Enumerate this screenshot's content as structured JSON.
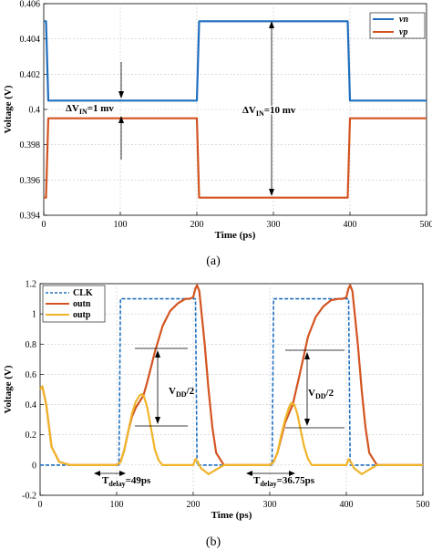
{
  "chart_data": [
    {
      "type": "line",
      "panel": "a",
      "caption": "(a)",
      "xlabel": "Time (ps)",
      "ylabel": "Voltage (V)",
      "xlim": [
        0,
        500
      ],
      "ylim": [
        0.394,
        0.406
      ],
      "xticks": [
        0,
        100,
        200,
        300,
        400,
        500
      ],
      "yticks": [
        0.394,
        0.396,
        0.398,
        0.4,
        0.402,
        0.404,
        0.406
      ],
      "ytick_labels": [
        "0.394",
        "0.396",
        "0.398",
        "0.4",
        "0.402",
        "0.404",
        "0.406"
      ],
      "grid": true,
      "legend_position": "top-right",
      "series": [
        {
          "name": "vn",
          "color": "#1f6fbf",
          "x": [
            0,
            3,
            6,
            200,
            203,
            397,
            400,
            500
          ],
          "y": [
            0.405,
            0.405,
            0.4005,
            0.4005,
            0.405,
            0.405,
            0.4005,
            0.4005
          ]
        },
        {
          "name": "vp",
          "color": "#d35420",
          "x": [
            0,
            3,
            6,
            200,
            203,
            397,
            400,
            500
          ],
          "y": [
            0.395,
            0.395,
            0.3995,
            0.3995,
            0.395,
            0.395,
            0.3995,
            0.3995
          ]
        }
      ],
      "annotations": [
        {
          "text": "ΔV",
          "sub": "IN",
          "rest": "=1 mv"
        },
        {
          "text": "ΔV",
          "sub": "IN",
          "rest": "=10 mv"
        }
      ]
    },
    {
      "type": "line",
      "panel": "b",
      "caption": "(b)",
      "xlabel": "Time (ps)",
      "ylabel": "Voltage (V)",
      "xlim": [
        0,
        500
      ],
      "ylim": [
        -0.2,
        1.2
      ],
      "xticks": [
        0,
        100,
        200,
        300,
        400,
        500
      ],
      "yticks": [
        -0.2,
        0,
        0.2,
        0.4,
        0.6,
        0.8,
        1,
        1.2
      ],
      "ytick_labels": [
        "-0.2",
        "0",
        "0.2",
        "0.4",
        "0.6",
        "0.8",
        "1",
        "1.2"
      ],
      "grid": true,
      "legend_position": "top-left",
      "series": [
        {
          "name": "CLK",
          "color": "#1f6fbf",
          "dash": true,
          "x": [
            0,
            1,
            3,
            103,
            105,
            203,
            205,
            303,
            305,
            403,
            405,
            500
          ],
          "y": [
            0,
            0,
            0,
            0,
            1.1,
            1.1,
            0,
            0,
            1.1,
            1.1,
            0,
            0
          ]
        },
        {
          "name": "outn",
          "color": "#d35420",
          "x": [
            0,
            3,
            8,
            15,
            25,
            40,
            60,
            100,
            105,
            110,
            115,
            120,
            125,
            130,
            135,
            140,
            150,
            160,
            170,
            180,
            190,
            195,
            200,
            203,
            205,
            208,
            210,
            215,
            220,
            225,
            230,
            240,
            250,
            260,
            280,
            300,
            305,
            310,
            315,
            320,
            325,
            330,
            340,
            350,
            360,
            370,
            380,
            390,
            395,
            400,
            403,
            405,
            408,
            410,
            415,
            420,
            425,
            430,
            440,
            450,
            460,
            480,
            500
          ],
          "y": [
            0.5,
            0.52,
            0.4,
            0.12,
            0.02,
            0,
            0,
            0,
            0.02,
            0.1,
            0.22,
            0.32,
            0.38,
            0.42,
            0.46,
            0.55,
            0.75,
            0.92,
            1.02,
            1.07,
            1.1,
            1.1,
            1.11,
            1.17,
            1.19,
            1.15,
            1.05,
            0.8,
            0.5,
            0.25,
            0.08,
            0,
            0,
            0,
            0,
            0,
            0.02,
            0.08,
            0.18,
            0.28,
            0.34,
            0.4,
            0.62,
            0.85,
            0.98,
            1.05,
            1.09,
            1.1,
            1.1,
            1.11,
            1.17,
            1.19,
            1.15,
            1.05,
            0.8,
            0.5,
            0.25,
            0.08,
            0,
            0,
            0,
            0,
            0
          ]
        },
        {
          "name": "outp",
          "color": "#f0b42a",
          "x": [
            0,
            3,
            8,
            15,
            25,
            40,
            60,
            100,
            105,
            110,
            115,
            120,
            125,
            130,
            133,
            136,
            140,
            145,
            150,
            155,
            160,
            170,
            180,
            190,
            200,
            203,
            206,
            210,
            220,
            230,
            240,
            250,
            260,
            280,
            300,
            305,
            310,
            315,
            320,
            325,
            328,
            332,
            336,
            340,
            345,
            350,
            355,
            360,
            370,
            380,
            390,
            400,
            403,
            406,
            410,
            420,
            430,
            440,
            450,
            460,
            480,
            500
          ],
          "y": [
            0.5,
            0.52,
            0.4,
            0.12,
            0.02,
            0,
            0,
            0,
            0.02,
            0.1,
            0.22,
            0.34,
            0.42,
            0.46,
            0.47,
            0.45,
            0.38,
            0.24,
            0.1,
            0.03,
            0,
            0,
            0,
            0,
            0,
            0.04,
            0.02,
            -0.02,
            -0.06,
            -0.03,
            0,
            0,
            0,
            0,
            0,
            0.02,
            0.08,
            0.2,
            0.3,
            0.38,
            0.41,
            0.4,
            0.34,
            0.24,
            0.12,
            0.04,
            0,
            0,
            0,
            0,
            0,
            0,
            0.04,
            0.02,
            -0.02,
            -0.06,
            -0.03,
            0,
            0,
            0,
            0,
            0
          ]
        }
      ],
      "annotations": [
        {
          "text": "V",
          "sub": "DD",
          "rest": "/2"
        },
        {
          "text": "V",
          "sub": "DD",
          "rest": "/2"
        },
        {
          "text": "T",
          "sub": "delay",
          "rest": "=49ps"
        },
        {
          "text": "T",
          "sub": "delay",
          "rest": "=36.75ps"
        }
      ]
    }
  ]
}
